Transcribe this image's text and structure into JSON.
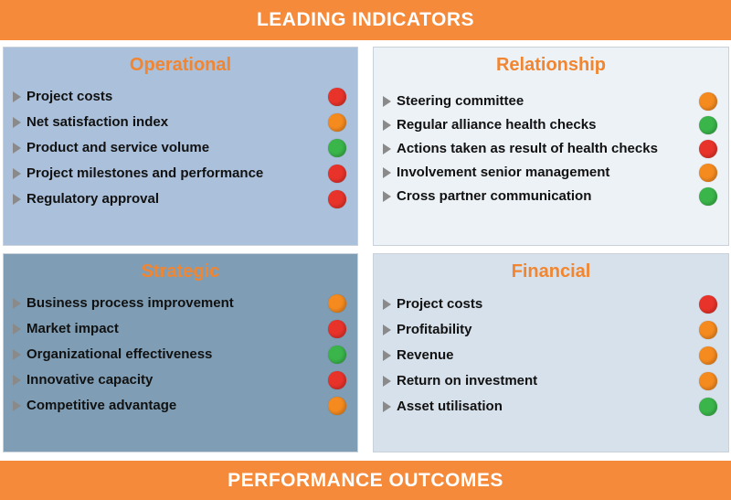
{
  "top_banner": "LEADING INDICATORS",
  "bottom_banner": "PERFORMANCE OUTCOMES",
  "status_colors": {
    "red": "#e8332a",
    "orange": "#f58a1f",
    "green": "#3ab54a"
  },
  "quadrants": {
    "operational": {
      "title": "Operational",
      "items": [
        {
          "label": "Project costs",
          "status": "red"
        },
        {
          "label": "Net satisfaction index",
          "status": "orange"
        },
        {
          "label": "Product and service volume",
          "status": "green"
        },
        {
          "label": "Project milestones and performance",
          "status": "red"
        },
        {
          "label": "Regulatory approval",
          "status": "red"
        }
      ]
    },
    "relationship": {
      "title": "Relationship",
      "items": [
        {
          "label": "Steering committee",
          "status": "orange"
        },
        {
          "label": "Regular alliance health checks",
          "status": "green"
        },
        {
          "label": "Actions taken as result of health checks",
          "status": "red"
        },
        {
          "label": "Involvement senior management",
          "status": "orange"
        },
        {
          "label": "Cross partner communication",
          "status": "green"
        }
      ]
    },
    "strategic": {
      "title": "Strategic",
      "items": [
        {
          "label": "Business process improvement",
          "status": "orange"
        },
        {
          "label": "Market impact",
          "status": "red"
        },
        {
          "label": "Organizational effectiveness",
          "status": "green"
        },
        {
          "label": "Innovative capacity",
          "status": "red"
        },
        {
          "label": "Competitive advantage",
          "status": "orange"
        }
      ]
    },
    "financial": {
      "title": "Financial",
      "items": [
        {
          "label": "Project costs",
          "status": "red"
        },
        {
          "label": "Profitability",
          "status": "orange"
        },
        {
          "label": "Revenue",
          "status": "orange"
        },
        {
          "label": "Return on investment",
          "status": "orange"
        },
        {
          "label": "Asset utilisation",
          "status": "green"
        }
      ]
    }
  }
}
